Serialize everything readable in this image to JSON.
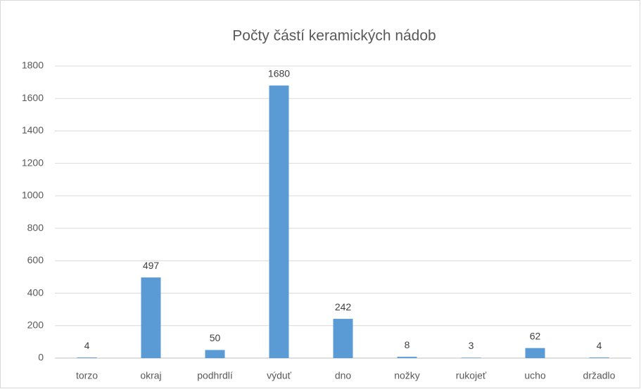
{
  "chart_data": {
    "type": "bar",
    "title": "Počty částí keramických nádob",
    "categories": [
      "torzo",
      "okraj",
      "podhrdlí",
      "výduť",
      "dno",
      "nožky",
      "rukojeť",
      "ucho",
      "držadlo"
    ],
    "values": [
      4,
      497,
      50,
      1680,
      242,
      8,
      3,
      62,
      4
    ],
    "color": "#5b9bd5",
    "ylim": [
      0,
      1800
    ],
    "yticks": [
      0,
      200,
      400,
      600,
      800,
      1000,
      1200,
      1400,
      1600,
      1800
    ],
    "grid": true,
    "data_labels": true
  }
}
